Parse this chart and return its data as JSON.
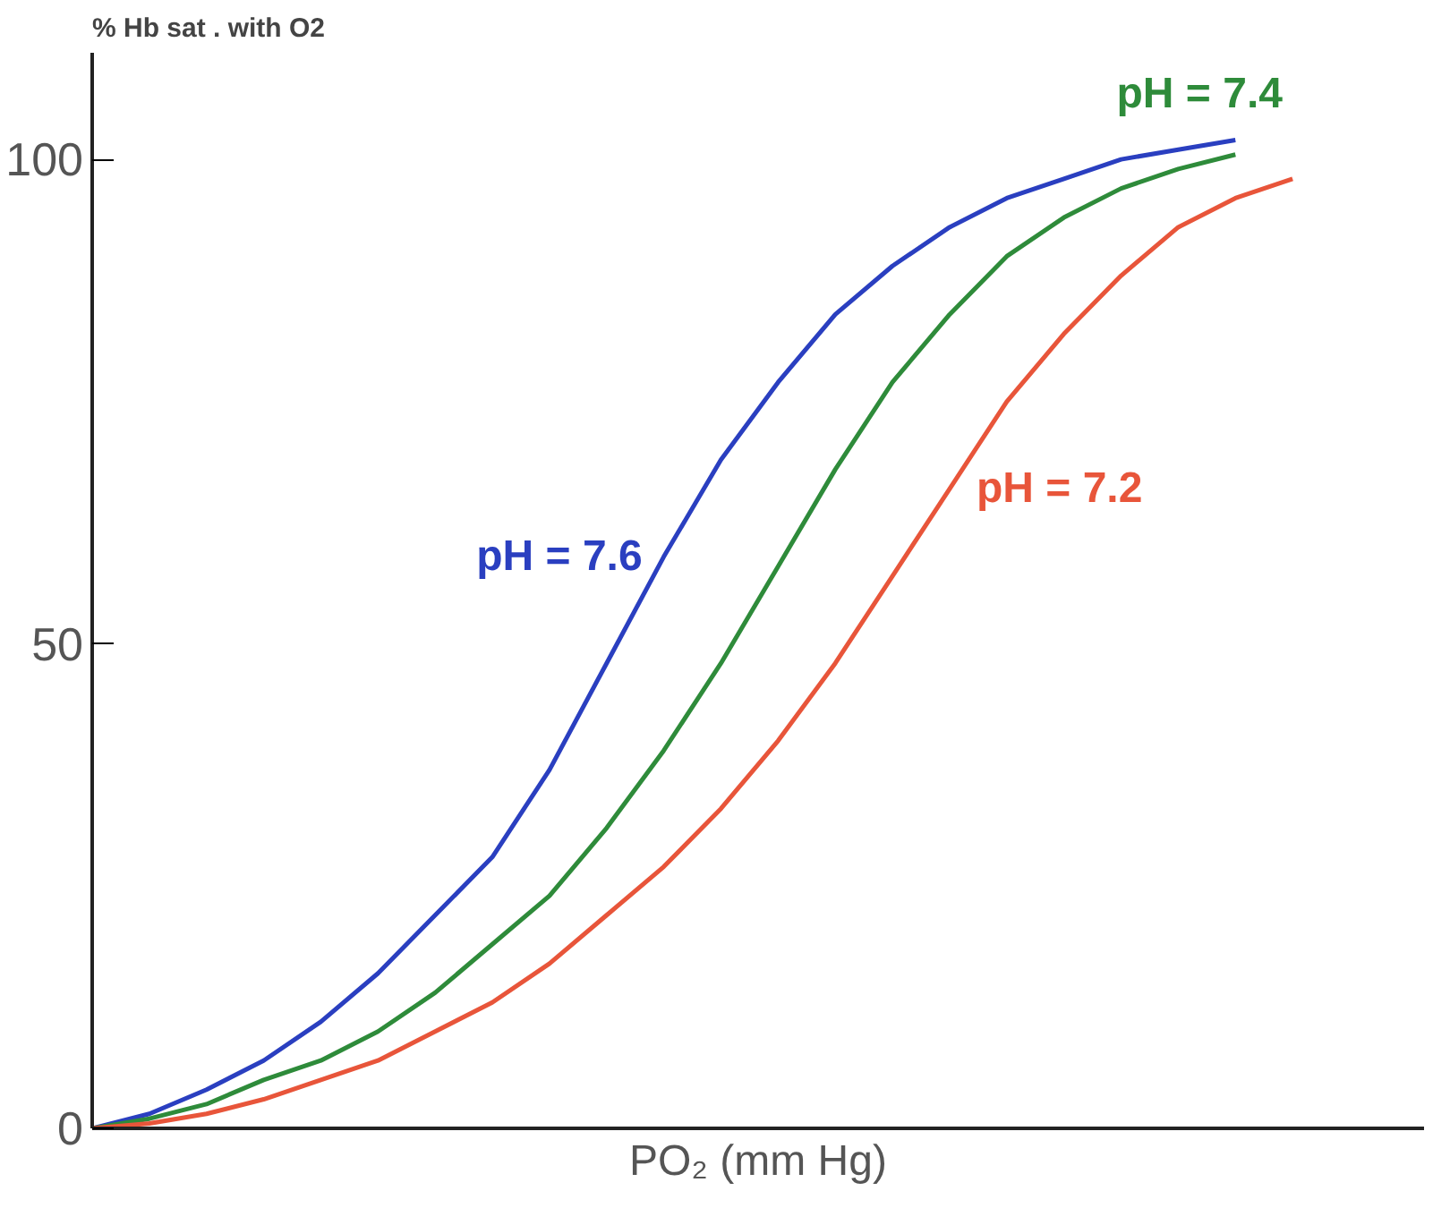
{
  "chart_data": {
    "type": "line",
    "ylabel": "% Hb sat . with O2",
    "xlabel": "PO₂ (mm Hg)",
    "categories": [
      null,
      null,
      null,
      null,
      null,
      null,
      null,
      null,
      null,
      null,
      null,
      null,
      null,
      null,
      null,
      null,
      null,
      null,
      null,
      null,
      null,
      null
    ],
    "series": [
      {
        "name": "pH = 7.6",
        "color": "#2a3fc0",
        "values": [
          0,
          1.5,
          4,
          7,
          11,
          16,
          22,
          28,
          37,
          48,
          59,
          69,
          77,
          84,
          89,
          93,
          96,
          98,
          100,
          101,
          102,
          null
        ]
      },
      {
        "name": "pH = 7.4",
        "color": "#2e8b3a",
        "values": [
          0,
          1,
          2.5,
          5,
          7,
          10,
          14,
          19,
          24,
          31,
          39,
          48,
          58,
          68,
          77,
          84,
          90,
          94,
          97,
          99,
          100.5,
          null
        ]
      },
      {
        "name": "pH = 7.2",
        "color": "#e8553a",
        "values": [
          0,
          0.5,
          1.5,
          3,
          5,
          7,
          10,
          13,
          17,
          22,
          27,
          33,
          40,
          48,
          57,
          66,
          75,
          82,
          88,
          93,
          96,
          98
        ]
      }
    ],
    "ylim": [
      0,
      111
    ],
    "yticks": [
      0,
      50,
      100
    ],
    "grid": false,
    "marker": "none",
    "line_style": "solid"
  }
}
